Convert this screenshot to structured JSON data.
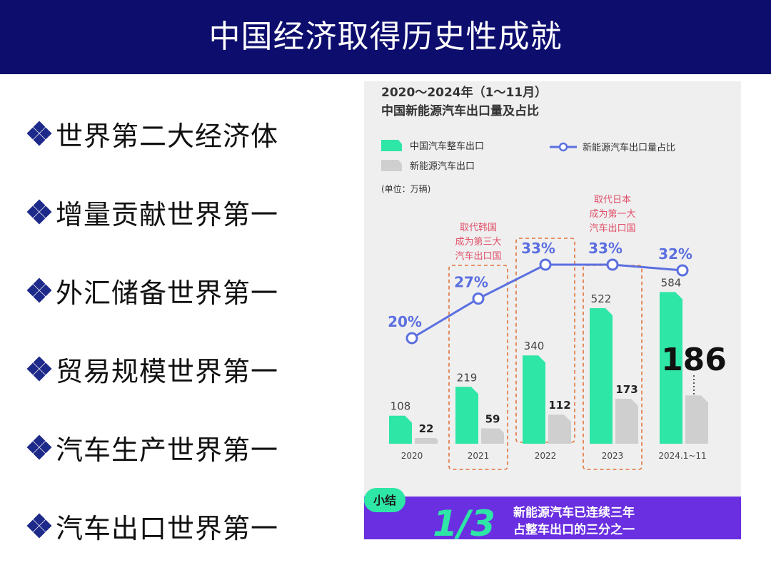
{
  "slide": {
    "title": "中国经济取得历史性成就",
    "bullets": [
      "世界第二大经济体",
      "增量贡献世界第一",
      "外汇储备世界第一",
      "贸易规模世界第一",
      "汽车生产世界第一",
      "汽车出口世界第一"
    ]
  },
  "chart_data": {
    "type": "bar",
    "title": "2020～2024年（1～11月）",
    "subtitle": "中国新能源汽车出口量及占比",
    "unit_label": "(单位：万辆)",
    "categories": [
      "2020",
      "2021",
      "2022",
      "2023",
      "2024.1~11"
    ],
    "series": [
      {
        "name": "中国汽车整车出口",
        "type": "bar",
        "color": "#2ee6a6",
        "values": [
          108,
          219,
          340,
          522,
          584
        ]
      },
      {
        "name": "新能源汽车出口",
        "type": "bar",
        "color": "#cfcfcf",
        "values": [
          22,
          59,
          112,
          173,
          186
        ]
      },
      {
        "name": "新能源汽车出口量占比",
        "type": "line",
        "color": "#5b6fe0",
        "values": [
          20,
          27,
          33,
          33,
          32
        ],
        "value_labels": [
          "20%",
          "27%",
          "33%",
          "33%",
          "32%"
        ]
      }
    ],
    "highlight_boxes": [
      {
        "category": "2021",
        "note_lines": [
          "取代韩国",
          "成为第三大",
          "汽车出口国"
        ]
      },
      {
        "category": "2022",
        "note_lines": []
      },
      {
        "category": "2023",
        "note_lines": [
          "取代日本",
          "成为第一大",
          "汽车出口国"
        ]
      }
    ],
    "callout": "186",
    "summary": {
      "tag": "小结",
      "big": "1/3",
      "lines": [
        "新能源汽车已连续三年",
        "占整车出口的三分之一"
      ]
    }
  }
}
